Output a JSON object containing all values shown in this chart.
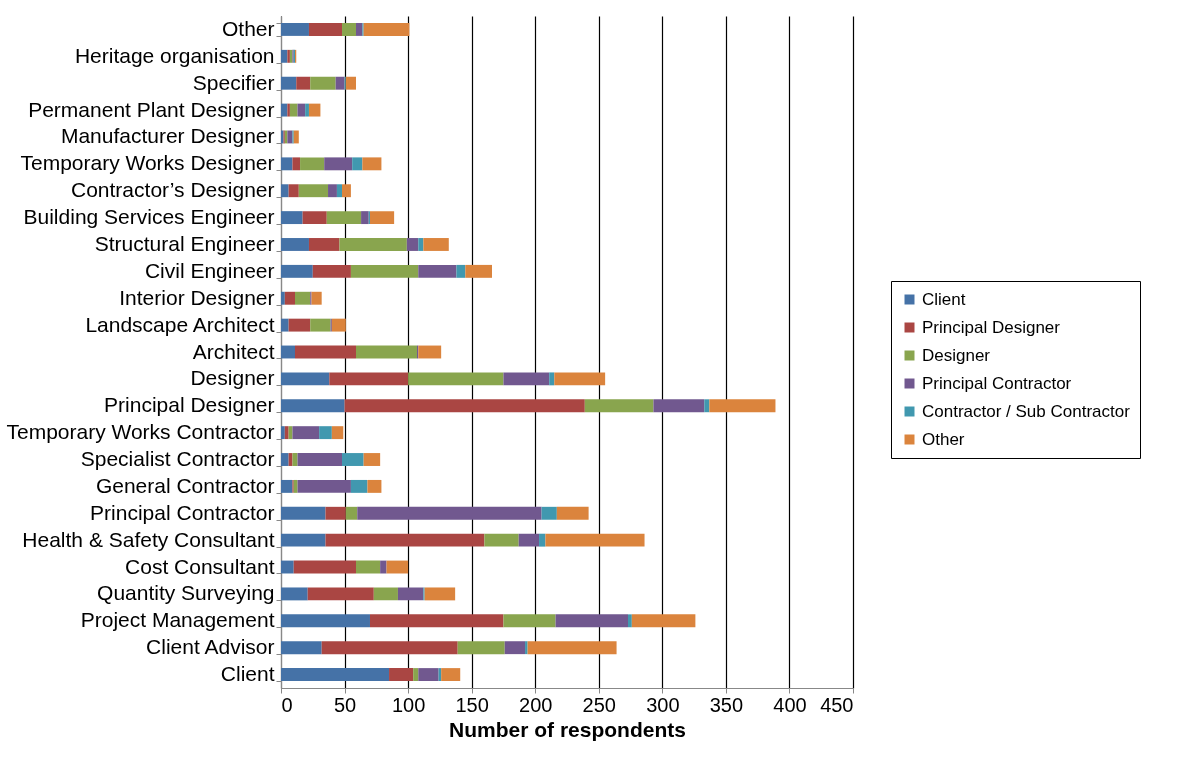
{
  "chart_data": {
    "type": "bar",
    "orientation": "horizontal",
    "stacked": true,
    "xlabel": "Number of respondents",
    "categories": [
      "Other",
      "Heritage organisation",
      "Specifier",
      "Permanent Plant Designer",
      "Manufacturer Designer",
      "Temporary Works Designer",
      "Contractor’s Designer",
      "Building Services Engineer",
      "Structural Engineer",
      "Civil Engineer",
      "Interior Designer",
      "Landscape Architect",
      "Architect",
      "Designer",
      "Principal Designer",
      "Temporary Works Contractor",
      "Specialist Contractor",
      "General Contractor",
      "Principal Contractor",
      "Health & Safety Consultant",
      "Cost Consultant",
      "Quantity Surveying",
      "Project Management",
      "Client Advisor",
      "Client"
    ],
    "series": [
      {
        "name": "Client",
        "color": "#4572a7",
        "values": [
          22,
          5,
          12,
          5,
          2,
          9,
          6,
          17,
          22,
          25,
          3,
          6,
          11,
          38,
          50,
          3,
          6,
          9,
          35,
          35,
          10,
          21,
          70,
          32,
          85
        ]
      },
      {
        "name": "Principal Designer",
        "color": "#aa4643",
        "values": [
          26,
          2,
          11,
          2,
          1,
          6,
          8,
          19,
          24,
          30,
          8,
          17,
          48,
          62,
          189,
          3,
          3,
          1,
          16,
          125,
          49,
          52,
          105,
          107,
          19
        ]
      },
      {
        "name": "Designer",
        "color": "#89a54e",
        "values": [
          11,
          2,
          20,
          6,
          2,
          19,
          23,
          27,
          53,
          53,
          12,
          16,
          48,
          75,
          54,
          3,
          4,
          3,
          9,
          27,
          19,
          19,
          41,
          37,
          4
        ]
      },
      {
        "name": "Principal Contractor",
        "color": "#71588f",
        "values": [
          5,
          1,
          7,
          6,
          4,
          22,
          7,
          6,
          9,
          30,
          1,
          1,
          1,
          36,
          40,
          21,
          35,
          42,
          145,
          16,
          5,
          20,
          57,
          16,
          16
        ]
      },
      {
        "name": "Contractor / Sub Contractor",
        "color": "#4198af",
        "values": [
          1,
          1,
          1,
          3,
          1,
          8,
          4,
          1,
          4,
          7,
          0,
          0,
          0,
          4,
          4,
          10,
          17,
          13,
          12,
          5,
          0,
          1,
          3,
          2,
          2
        ]
      },
      {
        "name": "Other",
        "color": "#db843d",
        "values": [
          36,
          1,
          8,
          9,
          4,
          15,
          7,
          19,
          20,
          21,
          8,
          11,
          18,
          40,
          52,
          9,
          13,
          11,
          25,
          78,
          17,
          24,
          50,
          70,
          15
        ]
      }
    ],
    "xlim": [
      0,
      450
    ],
    "xticks": [
      0,
      50,
      100,
      150,
      200,
      250,
      300,
      350,
      400,
      450
    ],
    "grid": "x",
    "legend": "right"
  }
}
